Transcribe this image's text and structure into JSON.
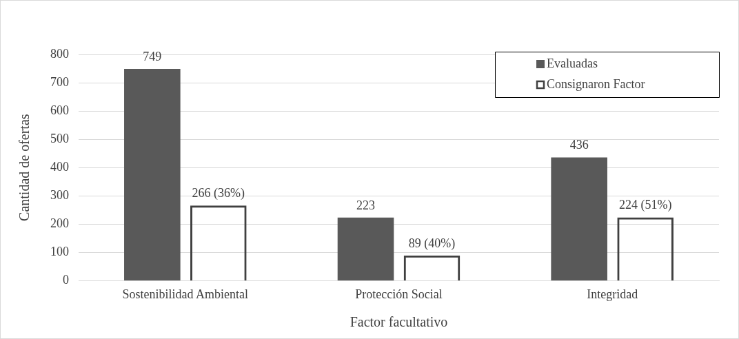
{
  "chart_data": {
    "type": "bar",
    "xlabel": "Factor facultativo",
    "ylabel": "Cantidad de ofertas",
    "categories": [
      "Sostenibilidad Ambiental",
      "Protección Social",
      "Integridad"
    ],
    "series": [
      {
        "name": "Evaluadas",
        "color": "#595959",
        "values": [
          749,
          223,
          436
        ],
        "value_labels": [
          "749",
          "223",
          "436"
        ]
      },
      {
        "name": "Consignaron Factor",
        "color": "#404040",
        "values": [
          266,
          89,
          224
        ],
        "value_labels": [
          "266 (36%)",
          "89 (40%)",
          "224 (51%)"
        ]
      }
    ],
    "ylim": [
      0,
      800
    ],
    "yticks": [
      0,
      100,
      200,
      300,
      400,
      500,
      600,
      700,
      800
    ],
    "grid": "y",
    "legend": "top right"
  }
}
